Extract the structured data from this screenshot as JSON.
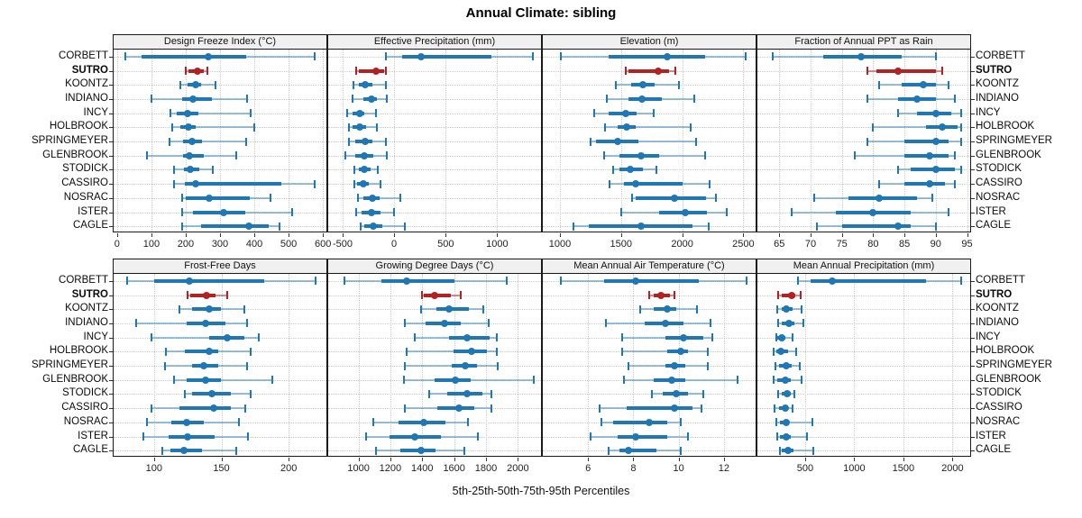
{
  "title": "Annual Climate: sibling",
  "footer": "5th-25th-50th-75th-95th Percentiles",
  "stations": [
    "CORBETT",
    "SUTRO",
    "KOONTZ",
    "INDIANO",
    "INCY",
    "HOLBROOK",
    "SPRINGMEYER",
    "GLENBROOK",
    "STODICK",
    "CASSIRO",
    "NOSRAC",
    "ISTER",
    "CAGLE"
  ],
  "highlight_station": "SUTRO",
  "colors": {
    "normal": "#1F77B4",
    "normal_light": "rgba(31,119,180,0.45)",
    "highlight": "#B22222",
    "highlight_light": "rgba(178,34,34,0.5)",
    "grid": "#c9c9c9",
    "header_bg": "#f0f0f0",
    "border": "#1a1a1a"
  },
  "chart_data": [
    {
      "type": "dotplot-percentiles",
      "title": "Design Freeze Index (°C)",
      "percentiles": [
        5,
        25,
        50,
        75,
        95
      ],
      "axis": {
        "min": -10,
        "max": 610,
        "ticks": [
          0,
          100,
          200,
          300,
          400,
          500,
          600
        ]
      },
      "series": [
        [
          25,
          70,
          265,
          375,
          577
        ],
        [
          200,
          208,
          234,
          252,
          264
        ],
        [
          185,
          205,
          228,
          246,
          288
        ],
        [
          100,
          190,
          220,
          276,
          378
        ],
        [
          155,
          175,
          205,
          236,
          388
        ],
        [
          160,
          185,
          209,
          228,
          400
        ],
        [
          154,
          191,
          219,
          247,
          375
        ],
        [
          86,
          193,
          211,
          254,
          347
        ],
        [
          165,
          194,
          212,
          240,
          279
        ],
        [
          165,
          197,
          228,
          478,
          575
        ],
        [
          190,
          200,
          268,
          386,
          446
        ],
        [
          189,
          222,
          310,
          373,
          510
        ],
        [
          189,
          246,
          384,
          443,
          472
        ]
      ]
    },
    {
      "type": "dotplot-percentiles",
      "title": "Effective Precipitation (mm)",
      "percentiles": [
        5,
        25,
        50,
        75,
        95
      ],
      "axis": {
        "min": -640,
        "max": 1425,
        "ticks": [
          -500,
          0,
          500,
          1000
        ]
      },
      "series": [
        [
          -80,
          75,
          265,
          945,
          1345
        ],
        [
          -370,
          -345,
          -178,
          -100,
          -82
        ],
        [
          -395,
          -345,
          -280,
          -215,
          -80
        ],
        [
          -400,
          -300,
          -224,
          -170,
          -70
        ],
        [
          -453,
          -404,
          -337,
          -288,
          -178
        ],
        [
          -440,
          -405,
          -330,
          -274,
          -166
        ],
        [
          -439,
          -375,
          -279,
          -215,
          -82
        ],
        [
          -476,
          -375,
          -288,
          -201,
          -70
        ],
        [
          -390,
          -346,
          -288,
          -230,
          -157
        ],
        [
          -390,
          -360,
          -296,
          -244,
          -134
        ],
        [
          -352,
          -302,
          -215,
          -143,
          60
        ],
        [
          -370,
          -317,
          -221,
          -128,
          -6
        ],
        [
          -326,
          -288,
          -201,
          -113,
          105
        ]
      ]
    },
    {
      "type": "dotplot-percentiles",
      "title": "Elevation (m)",
      "percentiles": [
        5,
        25,
        50,
        75,
        95
      ],
      "axis": {
        "min": 860,
        "max": 2600,
        "ticks": [
          1000,
          1500,
          2000,
          2500
        ]
      },
      "series": [
        [
          1005,
          1400,
          1880,
          2190,
          2515
        ],
        [
          1540,
          1560,
          1800,
          1890,
          1945
        ],
        [
          1455,
          1580,
          1675,
          1772,
          1970
        ],
        [
          1385,
          1557,
          1672,
          1832,
          2095
        ],
        [
          1283,
          1397,
          1538,
          1629,
          1768
        ],
        [
          1366,
          1469,
          1545,
          1617,
          2071
        ],
        [
          1247,
          1294,
          1473,
          1641,
          2114
        ],
        [
          1359,
          1486,
          1665,
          1808,
          2186
        ],
        [
          1433,
          1486,
          1574,
          1677,
          1792
        ],
        [
          1407,
          1521,
          1617,
          2000,
          2227
        ],
        [
          1593,
          1617,
          1935,
          2191,
          2275
        ],
        [
          1503,
          1808,
          2024,
          2203,
          2366
        ],
        [
          1108,
          1235,
          1660,
          2083,
          2215
        ]
      ]
    },
    {
      "type": "dotplot-percentiles",
      "title": "Fraction of Annual PPT as Rain",
      "percentiles": [
        5,
        25,
        50,
        75,
        95
      ],
      "axis": {
        "min": 61.5,
        "max": 95.5,
        "ticks": [
          65,
          70,
          75,
          80,
          85,
          90,
          95
        ]
      },
      "series": [
        [
          64,
          72,
          78,
          84.5,
          90
        ],
        [
          79,
          80.5,
          84,
          90,
          91
        ],
        [
          81,
          84.5,
          88,
          90,
          92
        ],
        [
          79,
          84,
          87,
          90,
          93
        ],
        [
          84,
          87,
          90,
          92.5,
          94
        ],
        [
          80,
          88.5,
          91,
          93.5,
          94
        ],
        [
          79,
          85,
          90,
          92,
          94
        ],
        [
          77,
          85,
          89,
          92,
          93
        ],
        [
          84,
          86,
          90,
          93,
          94
        ],
        [
          81,
          85,
          89,
          91.5,
          93
        ],
        [
          70.5,
          76,
          81,
          87,
          89.5
        ],
        [
          67,
          74,
          80,
          86,
          92
        ],
        [
          71,
          75,
          84,
          86,
          90
        ]
      ]
    },
    {
      "type": "dotplot-percentiles",
      "title": "Frost-Free Days",
      "percentiles": [
        5,
        25,
        50,
        75,
        95
      ],
      "axis": {
        "min": 70,
        "max": 228,
        "ticks": [
          100,
          150,
          200
        ]
      },
      "series": [
        [
          80,
          100,
          126,
          182,
          220
        ],
        [
          125,
          127,
          139,
          146,
          154
        ],
        [
          119,
          128,
          141,
          150,
          167
        ],
        [
          87,
          124,
          138,
          153,
          169
        ],
        [
          98,
          141,
          154,
          167,
          178
        ],
        [
          109,
          123,
          141,
          148,
          172
        ],
        [
          108,
          128,
          137,
          148,
          169
        ],
        [
          115,
          124,
          138,
          150,
          188
        ],
        [
          123,
          128,
          143,
          157,
          172
        ],
        [
          98,
          119,
          144,
          157,
          168
        ],
        [
          95,
          113,
          124,
          137,
          163
        ],
        [
          92,
          111,
          125,
          145,
          170
        ],
        [
          106,
          112,
          122,
          136,
          161
        ]
      ]
    },
    {
      "type": "dotplot-percentiles",
      "title": "Growing Degree Days (°C)",
      "percentiles": [
        5,
        25,
        50,
        75,
        95
      ],
      "axis": {
        "min": 810,
        "max": 2145,
        "ticks": [
          1000,
          1200,
          1400,
          1600,
          1800,
          2000
        ]
      },
      "series": [
        [
          910,
          1145,
          1300,
          1605,
          1930
        ],
        [
          1400,
          1412,
          1478,
          1578,
          1640
        ],
        [
          1395,
          1490,
          1565,
          1690,
          1780
        ],
        [
          1290,
          1420,
          1540,
          1640,
          1815
        ],
        [
          1350,
          1565,
          1680,
          1820,
          1870
        ],
        [
          1300,
          1595,
          1710,
          1805,
          1865
        ],
        [
          1290,
          1585,
          1670,
          1745,
          1875
        ],
        [
          1285,
          1480,
          1605,
          1705,
          2100
        ],
        [
          1445,
          1555,
          1680,
          1780,
          1835
        ],
        [
          1290,
          1495,
          1630,
          1725,
          1835
        ],
        [
          1095,
          1250,
          1410,
          1545,
          1685
        ],
        [
          1050,
          1195,
          1350,
          1515,
          1750
        ],
        [
          1110,
          1265,
          1395,
          1485,
          1665
        ]
      ]
    },
    {
      "type": "dotplot-percentiles",
      "title": "Mean Annual Air Temperature (°C)",
      "percentiles": [
        5,
        25,
        50,
        75,
        95
      ],
      "axis": {
        "min": 4,
        "max": 13.4,
        "ticks": [
          6,
          8,
          10,
          12
        ]
      },
      "series": [
        [
          4.8,
          6.7,
          8.1,
          10.9,
          13.0
        ],
        [
          8.7,
          8.9,
          9.2,
          9.6,
          9.8
        ],
        [
          8.3,
          8.9,
          9.5,
          9.9,
          10.8
        ],
        [
          6.8,
          8.5,
          9.4,
          10.2,
          11.4
        ],
        [
          7.5,
          9.4,
          10.2,
          11.1,
          11.5
        ],
        [
          7.5,
          9.5,
          10.1,
          10.4,
          11.3
        ],
        [
          7.8,
          9.4,
          9.8,
          10.3,
          11.3
        ],
        [
          7.6,
          8.9,
          9.7,
          10.3,
          12.6
        ],
        [
          8.8,
          9.3,
          9.9,
          10.4,
          11.1
        ],
        [
          6.5,
          7.7,
          9.8,
          10.6,
          11.0
        ],
        [
          6.6,
          7.1,
          8.7,
          9.5,
          10.1
        ],
        [
          6.1,
          7.3,
          8.1,
          9.5,
          10.4
        ],
        [
          6.9,
          7.4,
          7.8,
          9.0,
          10.1
        ]
      ]
    },
    {
      "type": "dotplot-percentiles",
      "title": "Mean Annual Precipitation (mm)",
      "percentiles": [
        5,
        25,
        50,
        75,
        95
      ],
      "axis": {
        "min": 15,
        "max": 2180,
        "ticks": [
          500,
          1000,
          1500,
          2000
        ]
      },
      "series": [
        [
          425,
          560,
          780,
          1735,
          2090
        ],
        [
          225,
          260,
          365,
          400,
          455
        ],
        [
          220,
          258,
          312,
          370,
          460
        ],
        [
          227,
          265,
          340,
          390,
          485
        ],
        [
          205,
          220,
          258,
          297,
          370
        ],
        [
          182,
          205,
          252,
          327,
          410
        ],
        [
          197,
          236,
          312,
          364,
          448
        ],
        [
          176,
          212,
          303,
          358,
          460
        ],
        [
          227,
          258,
          318,
          358,
          388
        ],
        [
          188,
          236,
          297,
          327,
          370
        ],
        [
          205,
          242,
          312,
          340,
          570
        ],
        [
          218,
          242,
          310,
          358,
          520
        ],
        [
          242,
          266,
          324,
          379,
          582
        ]
      ]
    }
  ]
}
